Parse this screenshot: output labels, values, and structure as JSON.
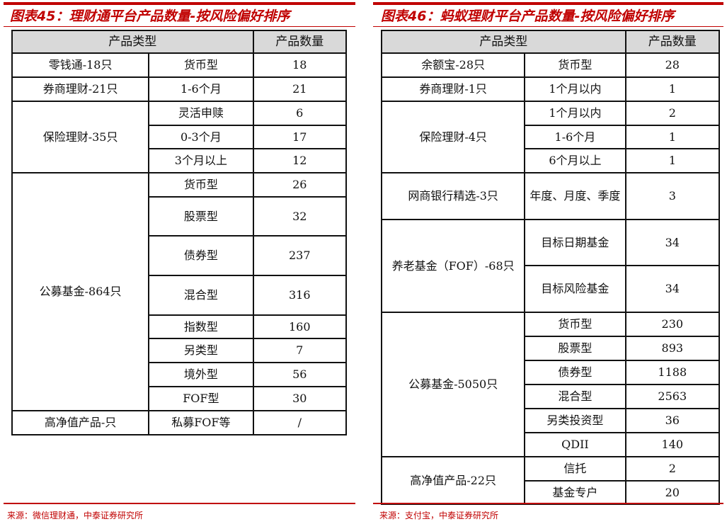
{
  "left": {
    "title": "图表45：理财通平台产品数量-按风险偏好排序",
    "header": [
      "产品类型",
      "产品数量"
    ],
    "groups": [
      {
        "name": "零钱通-18只",
        "items": [
          [
            "货币型",
            "18"
          ]
        ]
      },
      {
        "name": "券商理财-21只",
        "items": [
          [
            "1-6个月",
            "21"
          ]
        ]
      },
      {
        "name": "保险理财-35只",
        "items": [
          [
            "灵活申赎",
            "6"
          ],
          [
            "0-3个月",
            "17"
          ],
          [
            "3个月以上",
            "12"
          ]
        ]
      },
      {
        "name": "公募基金-864只",
        "items": [
          [
            "货币型",
            "26"
          ],
          [
            "股票型",
            "32"
          ],
          [
            "债券型",
            "237"
          ],
          [
            "混合型",
            "316"
          ],
          [
            "指数型",
            "160"
          ],
          [
            "另类型",
            "7"
          ],
          [
            "境外型",
            "56"
          ],
          [
            "FOF型",
            "30"
          ]
        ]
      },
      {
        "name": "高净值产品-只",
        "items": [
          [
            "私募FOF等",
            "/"
          ]
        ]
      }
    ],
    "source": "来源：微信理财通，中泰证券研究所"
  },
  "right": {
    "title": "图表46：蚂蚁理财平台产品数量-按风险偏好排序",
    "header": [
      "产品类型",
      "产品数量"
    ],
    "groups": [
      {
        "name": "余额宝-28只",
        "items": [
          [
            "货币型",
            "28"
          ]
        ]
      },
      {
        "name": "券商理财-1只",
        "items": [
          [
            "1个月以内",
            "1"
          ]
        ]
      },
      {
        "name": "保险理财-4只",
        "items": [
          [
            "1个月以内",
            "2"
          ],
          [
            "1-6个月",
            "1"
          ],
          [
            "6个月以上",
            "1"
          ]
        ]
      },
      {
        "name": "网商银行精选-3只",
        "items": [
          [
            "年度、月度、季度",
            "3"
          ]
        ]
      },
      {
        "name": "养老基金（FOF）-68只",
        "items": [
          [
            "目标日期基金",
            "34"
          ],
          [
            "目标风险基金",
            "34"
          ]
        ]
      },
      {
        "name": "公募基金-5050只",
        "items": [
          [
            "货币型",
            "230"
          ],
          [
            "股票型",
            "893"
          ],
          [
            "债券型",
            "1188"
          ],
          [
            "混合型",
            "2563"
          ],
          [
            "另类投资型",
            "36"
          ],
          [
            "QDII",
            "140"
          ]
        ]
      },
      {
        "name": "高净值产品-22只",
        "items": [
          [
            "信托",
            "2"
          ],
          [
            "基金专户",
            "20"
          ]
        ]
      }
    ],
    "source": "来源：支付宝，中泰证券研究所"
  }
}
